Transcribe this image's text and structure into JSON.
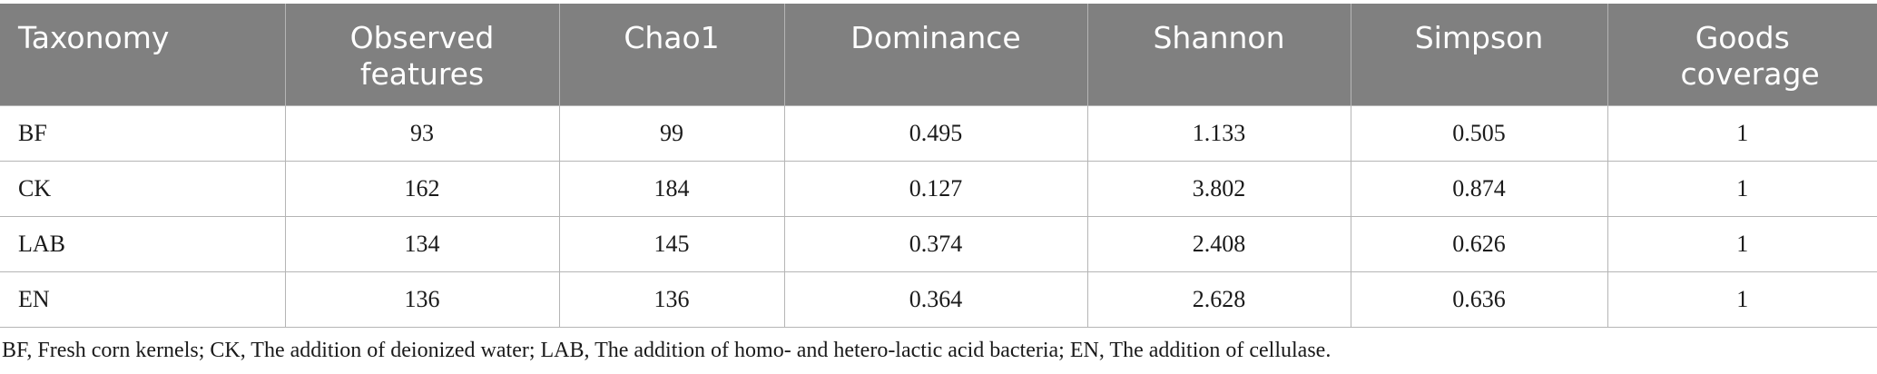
{
  "table": {
    "headers": [
      "Taxonomy",
      "Observed features",
      "Chao1",
      "Dominance",
      "Shannon",
      "Simpson",
      "Goods coverage"
    ],
    "rows": [
      [
        "BF",
        "93",
        "99",
        "0.495",
        "1.133",
        "0.505",
        "1"
      ],
      [
        "CK",
        "162",
        "184",
        "0.127",
        "3.802",
        "0.874",
        "1"
      ],
      [
        "LAB",
        "134",
        "145",
        "0.374",
        "2.408",
        "0.626",
        "1"
      ],
      [
        "EN",
        "136",
        "136",
        "0.364",
        "2.628",
        "0.636",
        "1"
      ]
    ]
  },
  "footnote": "BF, Fresh corn kernels; CK, The addition of deionized water; LAB, The addition of homo- and hetero-lactic acid bacteria; EN, The addition of cellulase.",
  "colors": {
    "header_bg": "#808080",
    "header_text": "#ffffff",
    "grid": "#b5b5b5"
  }
}
